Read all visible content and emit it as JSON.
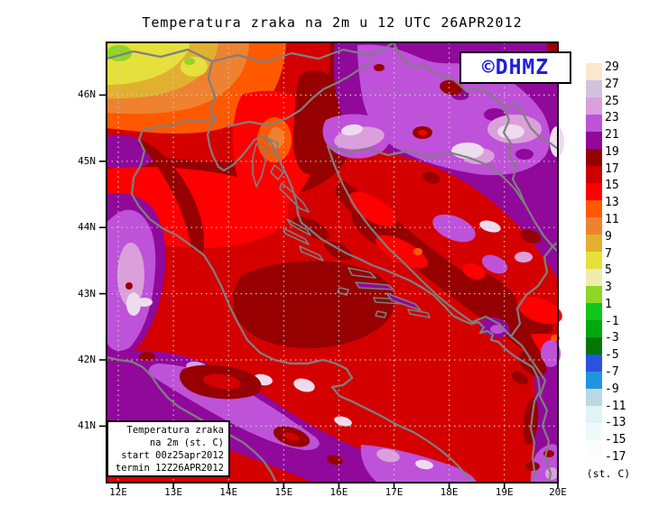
{
  "title": "Temperatura zraka na 2m u 12 UTC 26APR2012",
  "watermark": {
    "text": "©DHMZ"
  },
  "info_box": {
    "lines": [
      "Temperatura zraka",
      "na 2m (st. C)",
      "start 00z25apr2012",
      "termin 12Z26APR2012"
    ]
  },
  "axes": {
    "x_ticks": [
      "12E",
      "13E",
      "14E",
      "15E",
      "16E",
      "17E",
      "18E",
      "19E",
      "20E"
    ],
    "y_ticks": [
      "46N",
      "45N",
      "44N",
      "43N",
      "42N",
      "41N"
    ]
  },
  "colorbar": {
    "unit": "(st. C)",
    "levels": [
      "29",
      "27",
      "25",
      "23",
      "21",
      "19",
      "17",
      "15",
      "13",
      "11",
      "9",
      "7",
      "5",
      "3",
      "1",
      "-1",
      "-3",
      "-5",
      "-7",
      "-9",
      "-11",
      "-13",
      "-15",
      "-17"
    ],
    "cell_colors": [
      "#FBE7CE",
      "#D2C3DC",
      "#DBA0DB",
      "#BE52D8",
      "#90099B",
      "#960000",
      "#CF0000",
      "#FF0000",
      "#FF5900",
      "#EE8231",
      "#E2B02F",
      "#E5E03C",
      "#EDEDB0",
      "#8FD628",
      "#12C61A",
      "#00A810",
      "#007808",
      "#2A52E0",
      "#2097DC",
      "#BBD8E4",
      "#E0F4F6",
      "#EFFAFB",
      "#FAFDFE"
    ]
  },
  "palette": {
    "sea_red": "#D40000",
    "cold_red": "#FF0000",
    "warm_maroon": "#960000",
    "orange_red": "#FF5900",
    "orange": "#EE8231",
    "gold": "#E2B02F",
    "yellow": "#E5E03C",
    "lime": "#8FD628",
    "purple": "#90099B",
    "orchid": "#BE52D8",
    "plum": "#DBA0DB",
    "pale_pink": "#EDDCEE",
    "border_gray": "#7F7F7F",
    "grid_gray": "#C6CBC0",
    "logo_blue": "#1F1FE0"
  }
}
